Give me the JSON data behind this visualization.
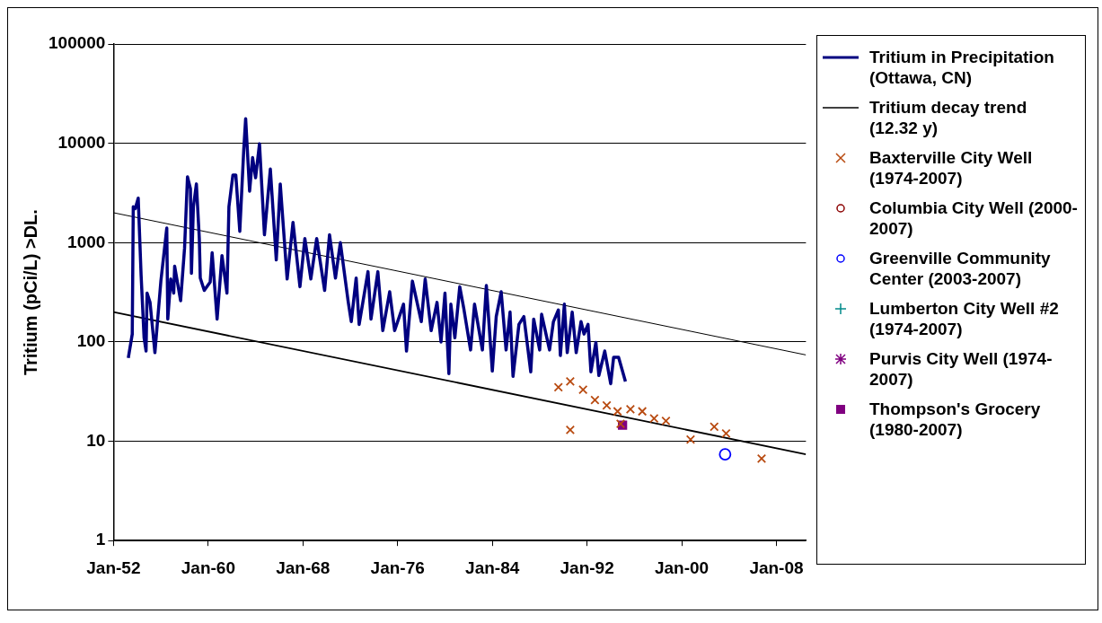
{
  "chart_data": {
    "type": "line",
    "ylabel": "Tritium (pCi/L) >DL.",
    "log": "y",
    "grid": "y",
    "legend": "right",
    "xlim": [
      "1952-01",
      "2010-07"
    ],
    "xticks": [
      {
        "value": "1952-01",
        "label": "Jan-52"
      },
      {
        "value": "1960-01",
        "label": "Jan-60"
      },
      {
        "value": "1968-01",
        "label": "Jan-68"
      },
      {
        "value": "1976-01",
        "label": "Jan-76"
      },
      {
        "value": "1984-01",
        "label": "Jan-84"
      },
      {
        "value": "1992-01",
        "label": "Jan-92"
      },
      {
        "value": "2000-01",
        "label": "Jan-00"
      },
      {
        "value": "2008-01",
        "label": "Jan-08"
      }
    ],
    "ylim": [
      1,
      100000
    ],
    "yticks": [
      1,
      10,
      100,
      1000,
      10000,
      100000
    ],
    "series": [
      {
        "name": "Tritium in Precipitation (Ottawa, CN)",
        "type": "line",
        "color": "#000080",
        "marker": "none",
        "line_style": "solid",
        "x": [
          "1953-04",
          "1953-08",
          "1953-09",
          "1953-11",
          "1954-02",
          "1954-05",
          "1954-08",
          "1954-10",
          "1954-11",
          "1955-02",
          "1955-07",
          "1956-01",
          "1956-07",
          "1956-08",
          "1956-11",
          "1957-02",
          "1957-03",
          "1957-09",
          "1958-01",
          "1958-04",
          "1958-07",
          "1958-08",
          "1958-10",
          "1959-01",
          "1959-04",
          "1959-05",
          "1959-09",
          "1960-03",
          "1960-05",
          "1960-10",
          "1961-03",
          "1961-08",
          "1961-10",
          "1962-02",
          "1962-05",
          "1962-09",
          "1963-01",
          "1963-03",
          "1963-07",
          "1963-10",
          "1964-01",
          "1964-05",
          "1964-10",
          "1965-04",
          "1965-10",
          "1966-02",
          "1966-09",
          "1967-03",
          "1967-10",
          "1968-03",
          "1968-09",
          "1969-03",
          "1969-11",
          "1970-04",
          "1970-10",
          "1971-03",
          "1971-11",
          "1972-02",
          "1972-07",
          "1972-10",
          "1973-07",
          "1973-10",
          "1974-05",
          "1974-10",
          "1975-05",
          "1975-10",
          "1976-07",
          "1976-10",
          "1977-04",
          "1978-01",
          "1978-05",
          "1978-11",
          "1979-05",
          "1979-09",
          "1980-01",
          "1980-05",
          "1980-07",
          "1980-11",
          "1981-04",
          "1981-08",
          "1982-03",
          "1982-07",
          "1983-03",
          "1983-07",
          "1984-01",
          "1984-05",
          "1984-10",
          "1985-03",
          "1985-07",
          "1985-10",
          "1986-04",
          "1986-09",
          "1987-04",
          "1987-07",
          "1988-01",
          "1988-03",
          "1988-11",
          "1989-03",
          "1989-08",
          "1989-10",
          "1990-02",
          "1990-05",
          "1990-10",
          "1991-02",
          "1991-07",
          "1991-10",
          "1992-02",
          "1992-05",
          "1992-10",
          "1993-01",
          "1993-07",
          "1994-01",
          "1994-04",
          "1994-09",
          "1995-04"
        ],
        "values": [
          69,
          120,
          2300,
          2200,
          2800,
          470,
          110,
          81,
          310,
          250,
          78,
          410,
          1400,
          170,
          430,
          310,
          580,
          260,
          880,
          4600,
          3500,
          490,
          2300,
          3900,
          1100,
          440,
          330,
          400,
          790,
          170,
          740,
          310,
          2300,
          4800,
          4800,
          1300,
          8600,
          17700,
          3300,
          7200,
          4500,
          9900,
          1200,
          5500,
          670,
          3900,
          430,
          1600,
          360,
          1100,
          430,
          1100,
          330,
          1200,
          440,
          1000,
          250,
          160,
          440,
          150,
          510,
          170,
          510,
          130,
          320,
          130,
          240,
          81,
          410,
          160,
          430,
          130,
          250,
          100,
          310,
          48,
          240,
          110,
          360,
          220,
          83,
          240,
          83,
          370,
          51,
          180,
          320,
          83,
          200,
          45,
          150,
          180,
          50,
          170,
          83,
          190,
          83,
          160,
          210,
          73,
          240,
          78,
          200,
          78,
          160,
          120,
          150,
          50,
          99,
          46,
          81,
          38,
          70,
          70,
          40
        ]
      },
      {
        "name": "Tritium decay trend (12.32 y)",
        "type": "line",
        "color": "#000000",
        "marker": "none",
        "line_style": "solid",
        "x": [
          "1952-01",
          "2010-07"
        ],
        "values": [
          2000,
          74
        ]
      },
      {
        "type": "line",
        "color": "#000000",
        "marker": "none",
        "line_style": "solid",
        "x": [
          "1952-01",
          "2010-07"
        ],
        "values": [
          200,
          7.4
        ]
      },
      {
        "name": "Baxterville City Well (1974-2007)",
        "type": "scatter",
        "color": "#b84a10",
        "marker": "cross",
        "x": [
          "1989-08",
          "1990-08",
          "1990-08",
          "1991-09",
          "1992-09",
          "1993-09",
          "1994-08",
          "1994-11",
          "1995-09",
          "1996-09",
          "1997-09",
          "1998-09",
          "2000-10",
          "2002-10",
          "2003-10",
          "2006-10"
        ],
        "values": [
          35,
          40,
          13,
          33,
          26,
          23,
          20,
          15,
          21,
          20,
          17,
          16,
          10.4,
          14,
          12,
          6.7
        ]
      },
      {
        "name": "Columbia City Well (2000-2007)",
        "type": "scatter",
        "color": "#8b0000",
        "marker": "circle"
      },
      {
        "name": "Greenville Community Center (2003-2007)",
        "type": "scatter",
        "color": "#0000ff",
        "marker": "circle",
        "x": [
          "2003-09"
        ],
        "values": [
          7.4
        ]
      },
      {
        "name": "Lumberton City Well #2 (1974-2007)",
        "type": "scatter",
        "color": "#008b8b",
        "marker": "plus"
      },
      {
        "name": "Purvis City Well (1974-2007)",
        "type": "scatter",
        "color": "#800080",
        "marker": "star"
      },
      {
        "name": "Thompson's Grocery (1980-2007)",
        "type": "scatter",
        "color": "#800080",
        "marker": "square",
        "x": [
          "1995-01"
        ],
        "values": [
          14.5
        ]
      }
    ]
  }
}
